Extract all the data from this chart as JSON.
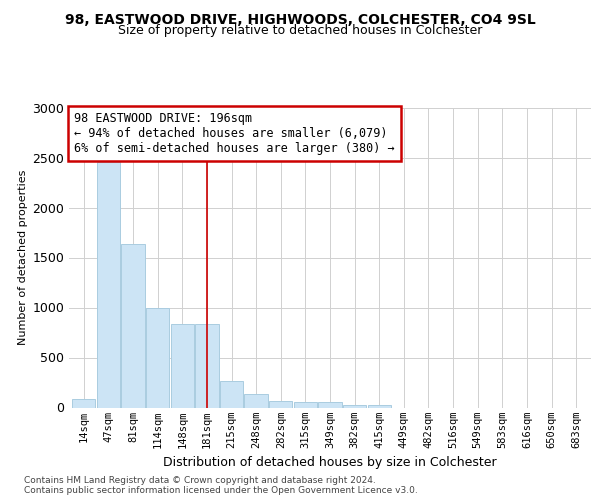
{
  "title1": "98, EASTWOOD DRIVE, HIGHWOODS, COLCHESTER, CO4 9SL",
  "title2": "Size of property relative to detached houses in Colchester",
  "xlabel": "Distribution of detached houses by size in Colchester",
  "ylabel": "Number of detached properties",
  "categories": [
    "14sqm",
    "47sqm",
    "81sqm",
    "114sqm",
    "148sqm",
    "181sqm",
    "215sqm",
    "248sqm",
    "282sqm",
    "315sqm",
    "349sqm",
    "382sqm",
    "415sqm",
    "449sqm",
    "482sqm",
    "516sqm",
    "549sqm",
    "583sqm",
    "616sqm",
    "650sqm",
    "683sqm"
  ],
  "values": [
    85,
    2460,
    1640,
    1000,
    840,
    840,
    270,
    140,
    70,
    60,
    55,
    30,
    25,
    0,
    0,
    0,
    0,
    0,
    0,
    0,
    0
  ],
  "bar_color": "#cce4f5",
  "bar_edge_color": "#aacce0",
  "highlight_bar_index": 5,
  "vline_color": "#cc0000",
  "annotation_text": "98 EASTWOOD DRIVE: 196sqm\n← 94% of detached houses are smaller (6,079)\n6% of semi-detached houses are larger (380) →",
  "annotation_box_color": "#ffffff",
  "annotation_box_edge_color": "#cc0000",
  "ylim": [
    0,
    3000
  ],
  "yticks": [
    0,
    500,
    1000,
    1500,
    2000,
    2500,
    3000
  ],
  "footnote": "Contains HM Land Registry data © Crown copyright and database right 2024.\nContains public sector information licensed under the Open Government Licence v3.0.",
  "bg_color": "#ffffff",
  "grid_color": "#d0d0d0"
}
